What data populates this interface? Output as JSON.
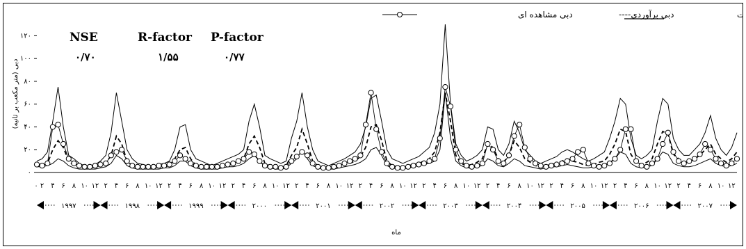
{
  "chart_data": {
    "type": "line",
    "title": "",
    "xlabel": "ماه",
    "ylabel": "دبی (متر مکعب بر ثانیه)",
    "ylim": [
      0,
      130
    ],
    "yticks": [
      "۰",
      "۲۰",
      "۴۰",
      "۶۰",
      "۸۰",
      "۱۰۰",
      "۱۲۰"
    ],
    "x_month_tick_cycle": [
      "۲",
      "۴",
      "۶",
      "۸",
      "۱۰",
      "۱۲"
    ],
    "x_first_tick": "۰",
    "years": [
      "۱۹۹۷",
      "۱۹۹۸",
      "۱۹۹۹",
      "۲۰۰۰",
      "۲۰۰۱",
      "۲۰۰۲",
      "۲۰۰۳",
      "۲۰۰۴",
      "۲۰۰۵",
      "۲۰۰۶",
      "۲۰۰۷"
    ],
    "months_per_year": 12,
    "legend": {
      "band": "باند عدم قطعیت",
      "simulated": "دبی برآوردی----",
      "observed": "دبی مشاهده ای"
    },
    "stats": {
      "nse_label": "NSE",
      "nse_value": "۰/۷۰",
      "rfactor_label": "R-factor",
      "rfactor_value": "۱/۵۵",
      "pfactor_label": "P-factor",
      "pfactor_value": "۰/۷۷"
    },
    "series": [
      {
        "name": "band_upper",
        "values": [
          10,
          12,
          18,
          45,
          75,
          40,
          15,
          12,
          8,
          6,
          6,
          7,
          10,
          15,
          35,
          70,
          45,
          20,
          12,
          8,
          7,
          6,
          6,
          7,
          8,
          10,
          20,
          40,
          42,
          20,
          12,
          10,
          8,
          6,
          8,
          10,
          12,
          14,
          16,
          20,
          45,
          60,
          40,
          15,
          12,
          10,
          8,
          10,
          30,
          45,
          70,
          40,
          20,
          10,
          8,
          6,
          8,
          10,
          12,
          15,
          18,
          25,
          40,
          65,
          68,
          45,
          20,
          12,
          10,
          8,
          10,
          12,
          14,
          18,
          22,
          35,
          60,
          130,
          60,
          25,
          15,
          10,
          12,
          15,
          20,
          40,
          38,
          20,
          15,
          25,
          45,
          35,
          20,
          15,
          10,
          8,
          10,
          12,
          14,
          18,
          20,
          18,
          15,
          12,
          10,
          12,
          15,
          18,
          30,
          45,
          65,
          60,
          30,
          15,
          12,
          15,
          20,
          45,
          65,
          60,
          30,
          20,
          15,
          15,
          20,
          25,
          35,
          50,
          30,
          20,
          15,
          22,
          35
        ]
      },
      {
        "name": "band_lower",
        "values": [
          5,
          5,
          6,
          8,
          12,
          10,
          6,
          4,
          3,
          3,
          3,
          3,
          4,
          5,
          8,
          15,
          12,
          6,
          4,
          3,
          3,
          3,
          3,
          3,
          4,
          4,
          6,
          10,
          10,
          6,
          4,
          3,
          3,
          3,
          3,
          4,
          5,
          5,
          6,
          8,
          12,
          15,
          10,
          5,
          4,
          3,
          3,
          4,
          8,
          12,
          20,
          12,
          6,
          4,
          3,
          3,
          3,
          4,
          5,
          6,
          7,
          9,
          12,
          20,
          22,
          15,
          6,
          4,
          3,
          3,
          4,
          5,
          6,
          7,
          8,
          10,
          20,
          70,
          30,
          10,
          6,
          4,
          4,
          5,
          6,
          12,
          10,
          6,
          5,
          8,
          12,
          10,
          6,
          5,
          4,
          3,
          4,
          5,
          5,
          6,
          7,
          6,
          5,
          4,
          4,
          5,
          6,
          7,
          9,
          12,
          18,
          16,
          8,
          5,
          4,
          5,
          6,
          12,
          18,
          16,
          8,
          6,
          5,
          5,
          6,
          8,
          10,
          12,
          8,
          6,
          5,
          6,
          8
        ]
      },
      {
        "name": "simulated",
        "values": [
          6,
          6,
          8,
          20,
          28,
          22,
          10,
          6,
          5,
          4,
          4,
          5,
          6,
          8,
          15,
          32,
          25,
          10,
          6,
          5,
          4,
          4,
          4,
          5,
          5,
          6,
          12,
          20,
          22,
          12,
          6,
          5,
          4,
          4,
          5,
          6,
          7,
          8,
          10,
          12,
          25,
          32,
          22,
          8,
          6,
          5,
          4,
          6,
          15,
          22,
          38,
          25,
          10,
          6,
          5,
          4,
          5,
          6,
          7,
          8,
          10,
          14,
          22,
          40,
          42,
          28,
          10,
          6,
          5,
          4,
          6,
          7,
          8,
          10,
          12,
          18,
          35,
          70,
          45,
          15,
          8,
          6,
          7,
          9,
          12,
          25,
          22,
          12,
          9,
          15,
          28,
          22,
          12,
          9,
          6,
          5,
          6,
          7,
          8,
          10,
          12,
          10,
          9,
          7,
          6,
          7,
          9,
          10,
          16,
          25,
          38,
          36,
          16,
          9,
          7,
          9,
          12,
          25,
          36,
          34,
          16,
          12,
          9,
          9,
          12,
          15,
          20,
          25,
          16,
          12,
          9,
          12,
          18
        ]
      },
      {
        "name": "observed",
        "values": [
          7,
          6,
          8,
          40,
          42,
          25,
          12,
          8,
          6,
          5,
          5,
          6,
          7,
          8,
          15,
          18,
          20,
          10,
          6,
          5,
          5,
          5,
          5,
          6,
          6,
          7,
          10,
          15,
          12,
          8,
          6,
          5,
          5,
          5,
          5,
          6,
          7,
          8,
          10,
          12,
          18,
          16,
          10,
          6,
          5,
          5,
          4,
          5,
          10,
          14,
          18,
          15,
          8,
          5,
          4,
          4,
          5,
          6,
          8,
          10,
          12,
          15,
          42,
          70,
          38,
          18,
          8,
          5,
          4,
          4,
          5,
          6,
          7,
          8,
          10,
          12,
          30,
          75,
          58,
          20,
          10,
          6,
          5,
          6,
          8,
          25,
          20,
          10,
          8,
          15,
          32,
          42,
          22,
          12,
          8,
          6,
          5,
          6,
          7,
          8,
          10,
          12,
          18,
          20,
          8,
          6,
          5,
          6,
          8,
          12,
          20,
          38,
          38,
          10,
          6,
          5,
          8,
          12,
          25,
          35,
          18,
          10,
          8,
          10,
          12,
          16,
          25,
          20,
          12,
          8,
          6,
          8,
          12
        ]
      }
    ]
  }
}
